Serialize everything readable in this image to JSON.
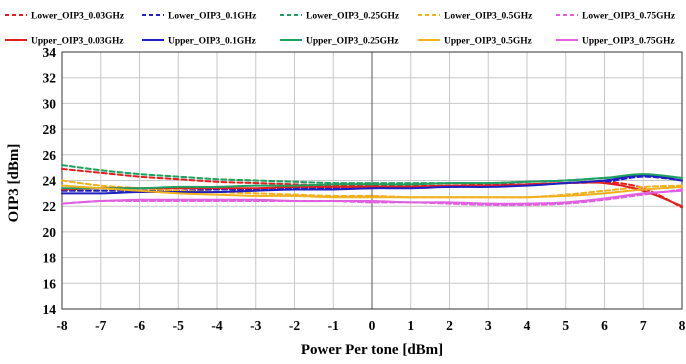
{
  "chart_data": {
    "type": "line",
    "xlabel": "Power Per tone [dBm]",
    "ylabel": "OIP3 [dBm]",
    "xlim": [
      -8,
      8
    ],
    "ylim": [
      14,
      34
    ],
    "x_ticks": [
      "-8",
      "-7",
      "-6",
      "-5",
      "-4",
      "-3",
      "-2",
      "-1",
      "0",
      "1",
      "2",
      "3",
      "4",
      "5",
      "6",
      "7",
      "8"
    ],
    "y_ticks": [
      "14",
      "16",
      "18",
      "20",
      "22",
      "24",
      "26",
      "28",
      "30",
      "32",
      "34"
    ],
    "grid": true,
    "legend_position": "top",
    "x": [
      -8,
      -7,
      -6,
      -5,
      -4,
      -3,
      -2,
      -1,
      0,
      1,
      2,
      3,
      4,
      5,
      6,
      7,
      8
    ],
    "series": [
      {
        "name": "Lower_OIP3_0.03GHz",
        "color": "#e02020",
        "dash": true,
        "values": [
          24.9,
          24.6,
          24.3,
          24.1,
          23.9,
          23.8,
          23.7,
          23.6,
          23.6,
          23.6,
          23.6,
          23.7,
          23.7,
          23.8,
          23.9,
          23.4,
          21.9
        ]
      },
      {
        "name": "Lower_OIP3_0.1GHz",
        "color": "#2020c0",
        "dash": true,
        "values": [
          23.2,
          23.2,
          23.2,
          23.2,
          23.3,
          23.3,
          23.4,
          23.4,
          23.4,
          23.5,
          23.5,
          23.6,
          23.7,
          23.8,
          23.9,
          24.3,
          24.0
        ]
      },
      {
        "name": "Lower_OIP3_0.25GHz",
        "color": "#20a060",
        "dash": true,
        "values": [
          25.2,
          24.8,
          24.5,
          24.3,
          24.1,
          24.0,
          23.9,
          23.8,
          23.8,
          23.8,
          23.8,
          23.8,
          23.9,
          24.0,
          24.2,
          24.4,
          24.2
        ]
      },
      {
        "name": "Lower_OIP3_0.5GHz",
        "color": "#f0b020",
        "dash": true,
        "values": [
          24.0,
          23.6,
          23.4,
          23.2,
          23.1,
          23.0,
          22.9,
          22.8,
          22.8,
          22.7,
          22.7,
          22.7,
          22.7,
          22.9,
          23.2,
          23.5,
          23.6
        ]
      },
      {
        "name": "Lower_OIP3_0.75GHz",
        "color": "#e060e0",
        "dash": true,
        "values": [
          22.2,
          22.4,
          22.4,
          22.4,
          22.4,
          22.4,
          22.4,
          22.4,
          22.3,
          22.3,
          22.2,
          22.1,
          22.1,
          22.2,
          22.5,
          22.9,
          23.3
        ]
      },
      {
        "name": "Upper_OIP3_0.03GHz",
        "color": "#e02020",
        "dash": false,
        "values": [
          23.3,
          23.4,
          23.4,
          23.4,
          23.4,
          23.4,
          23.5,
          23.5,
          23.5,
          23.5,
          23.6,
          23.6,
          23.7,
          23.8,
          23.8,
          23.2,
          22.0
        ]
      },
      {
        "name": "Upper_OIP3_0.1GHz",
        "color": "#2020c0",
        "dash": false,
        "values": [
          23.0,
          23.0,
          23.1,
          23.1,
          23.1,
          23.2,
          23.3,
          23.3,
          23.4,
          23.4,
          23.5,
          23.5,
          23.6,
          23.8,
          24.0,
          24.4,
          24.0
        ]
      },
      {
        "name": "Upper_OIP3_0.25GHz",
        "color": "#20a060",
        "dash": false,
        "values": [
          23.4,
          23.4,
          23.4,
          23.5,
          23.5,
          23.6,
          23.6,
          23.7,
          23.7,
          23.7,
          23.8,
          23.8,
          23.9,
          24.0,
          24.2,
          24.5,
          24.2
        ]
      },
      {
        "name": "Upper_OIP3_0.5GHz",
        "color": "#f0b020",
        "dash": false,
        "values": [
          23.6,
          23.4,
          23.2,
          23.0,
          22.9,
          22.8,
          22.8,
          22.7,
          22.7,
          22.7,
          22.7,
          22.7,
          22.7,
          22.8,
          23.0,
          23.3,
          23.5
        ]
      },
      {
        "name": "Upper_OIP3_0.75GHz",
        "color": "#e060e0",
        "dash": false,
        "values": [
          22.2,
          22.4,
          22.5,
          22.5,
          22.5,
          22.5,
          22.4,
          22.4,
          22.4,
          22.3,
          22.3,
          22.2,
          22.2,
          22.3,
          22.6,
          23.0,
          23.2
        ]
      }
    ]
  }
}
